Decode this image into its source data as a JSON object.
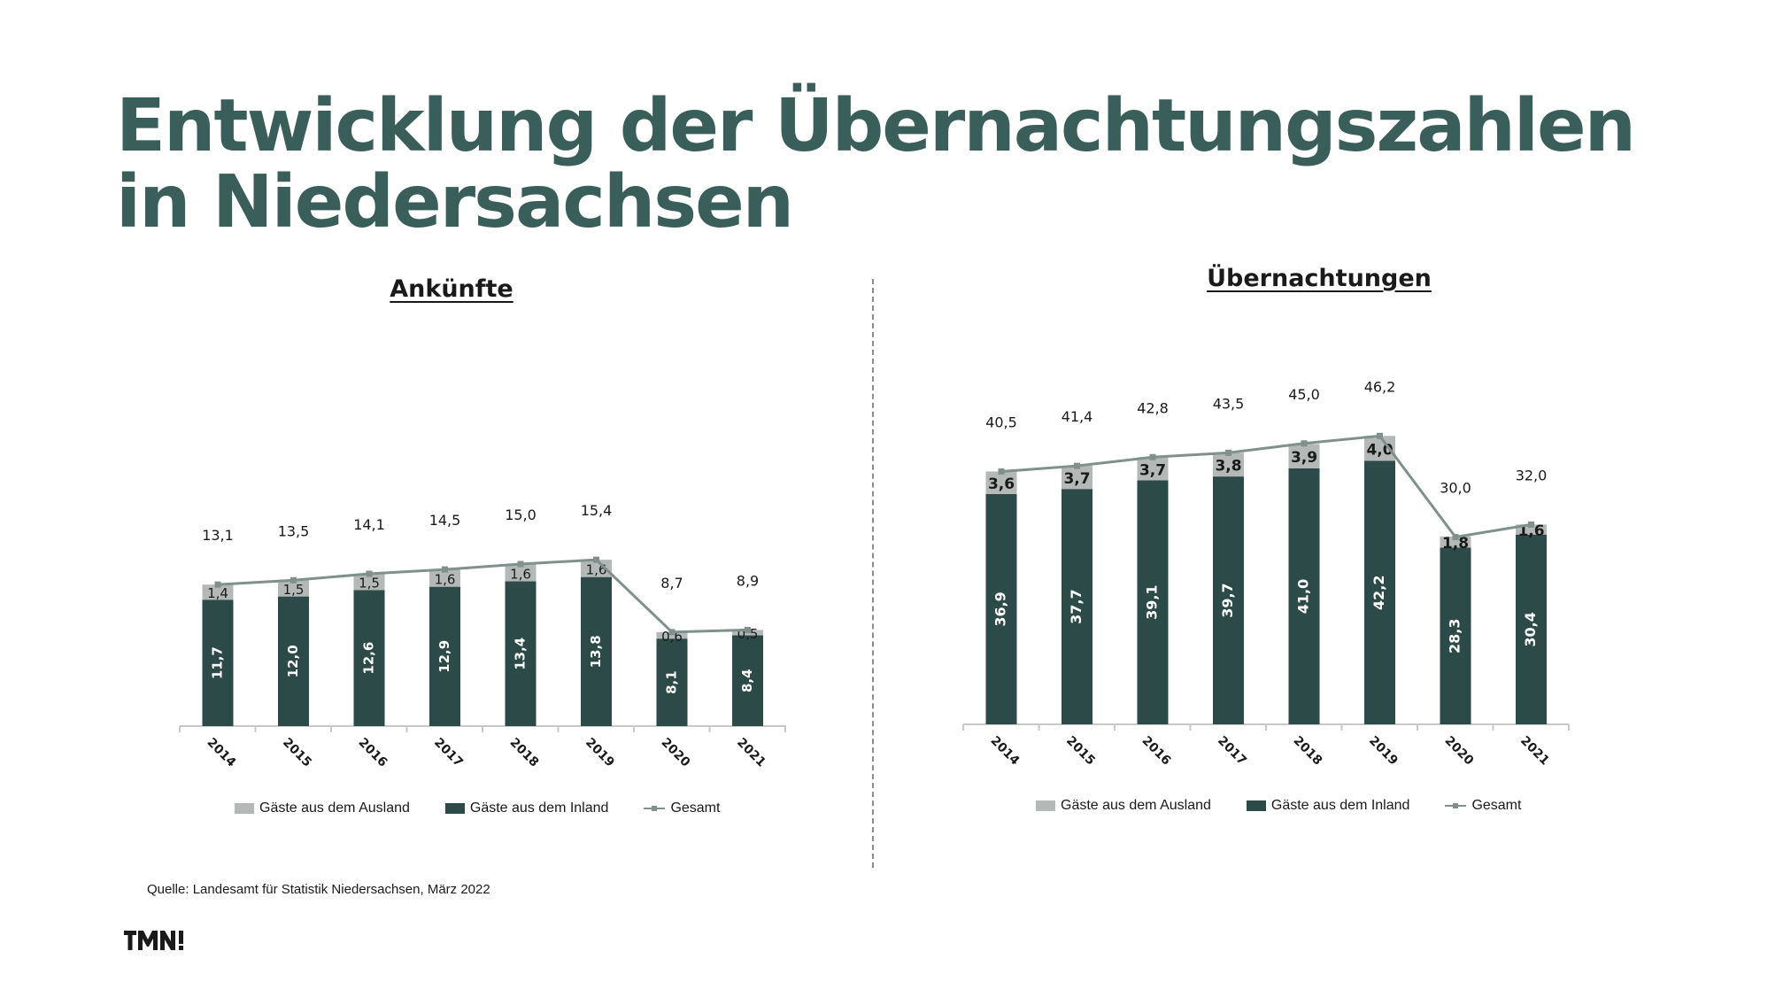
{
  "slide": {
    "title_line1": "Entwicklung der Übernachtungszahlen",
    "title_line2": "in Niedersachsen",
    "source": "Quelle: Landesamt für Statistik Niedersachsen, März 2022",
    "logo_text": "TMN!"
  },
  "colors": {
    "title": "#3a5f5a",
    "inland": "#2c4b48",
    "ausland": "#b4b9b7",
    "gesamt_line": "#7f908d"
  },
  "chart_data": [
    {
      "type": "bar",
      "stacked": true,
      "title": "Ankünfte",
      "categories": [
        "2014",
        "2015",
        "2016",
        "2017",
        "2018",
        "2019",
        "2020",
        "2021"
      ],
      "series": [
        {
          "name": "Gäste aus dem Inland",
          "kind": "bar",
          "color": "#2c4b48",
          "values": [
            11.7,
            12.0,
            12.6,
            12.9,
            13.4,
            13.8,
            8.1,
            8.4
          ],
          "labels": [
            "11,7",
            "12,0",
            "12,6",
            "12,9",
            "13,4",
            "13,8",
            "8,1",
            "8,4"
          ]
        },
        {
          "name": "Gäste aus dem Ausland",
          "kind": "bar",
          "color": "#b4b9b7",
          "values": [
            1.4,
            1.5,
            1.5,
            1.6,
            1.6,
            1.6,
            0.6,
            0.5
          ],
          "labels": [
            "1,4",
            "1,5",
            "1,5",
            "1,6",
            "1,6",
            "1,6",
            "0,6",
            "0,5"
          ]
        },
        {
          "name": "Gesamt",
          "kind": "line",
          "color": "#7f908d",
          "values": [
            13.1,
            13.5,
            14.1,
            14.5,
            15.0,
            15.4,
            8.7,
            8.9
          ],
          "labels": [
            "13,1",
            "13,5",
            "14,1",
            "14,5",
            "15,0",
            "15,4",
            "8,7",
            "8,9"
          ]
        }
      ],
      "legend": [
        "Gäste aus dem Ausland",
        "Gäste aus dem Inland",
        "Gesamt"
      ],
      "legend_position": "bottom",
      "grid": false
    },
    {
      "type": "bar",
      "stacked": true,
      "title": "Übernachtungen",
      "categories": [
        "2014",
        "2015",
        "2016",
        "2017",
        "2018",
        "2019",
        "2020",
        "2021"
      ],
      "series": [
        {
          "name": "Gäste aus dem Inland",
          "kind": "bar",
          "color": "#2c4b48",
          "values": [
            36.9,
            37.7,
            39.1,
            39.7,
            41.0,
            42.2,
            28.3,
            30.4
          ],
          "labels": [
            "36,9",
            "37,7",
            "39,1",
            "39,7",
            "41,0",
            "42,2",
            "28,3",
            "30,4"
          ]
        },
        {
          "name": "Gäste aus dem Ausland",
          "kind": "bar",
          "color": "#b4b9b7",
          "values": [
            3.6,
            3.7,
            3.7,
            3.8,
            3.9,
            4.0,
            1.8,
            1.6
          ],
          "labels": [
            "3,6",
            "3,7",
            "3,7",
            "3,8",
            "3,9",
            "4,0",
            "1,8",
            "1,6"
          ]
        },
        {
          "name": "Gesamt",
          "kind": "line",
          "color": "#7f908d",
          "values": [
            40.5,
            41.4,
            42.8,
            43.5,
            45.0,
            46.2,
            30.0,
            32.0
          ],
          "labels": [
            "40,5",
            "41,4",
            "42,8",
            "43,5",
            "45,0",
            "46,2",
            "30,0",
            "32,0"
          ]
        }
      ],
      "legend": [
        "Gäste aus dem Ausland",
        "Gäste aus dem Inland",
        "Gesamt"
      ],
      "legend_position": "bottom",
      "grid": false
    }
  ]
}
